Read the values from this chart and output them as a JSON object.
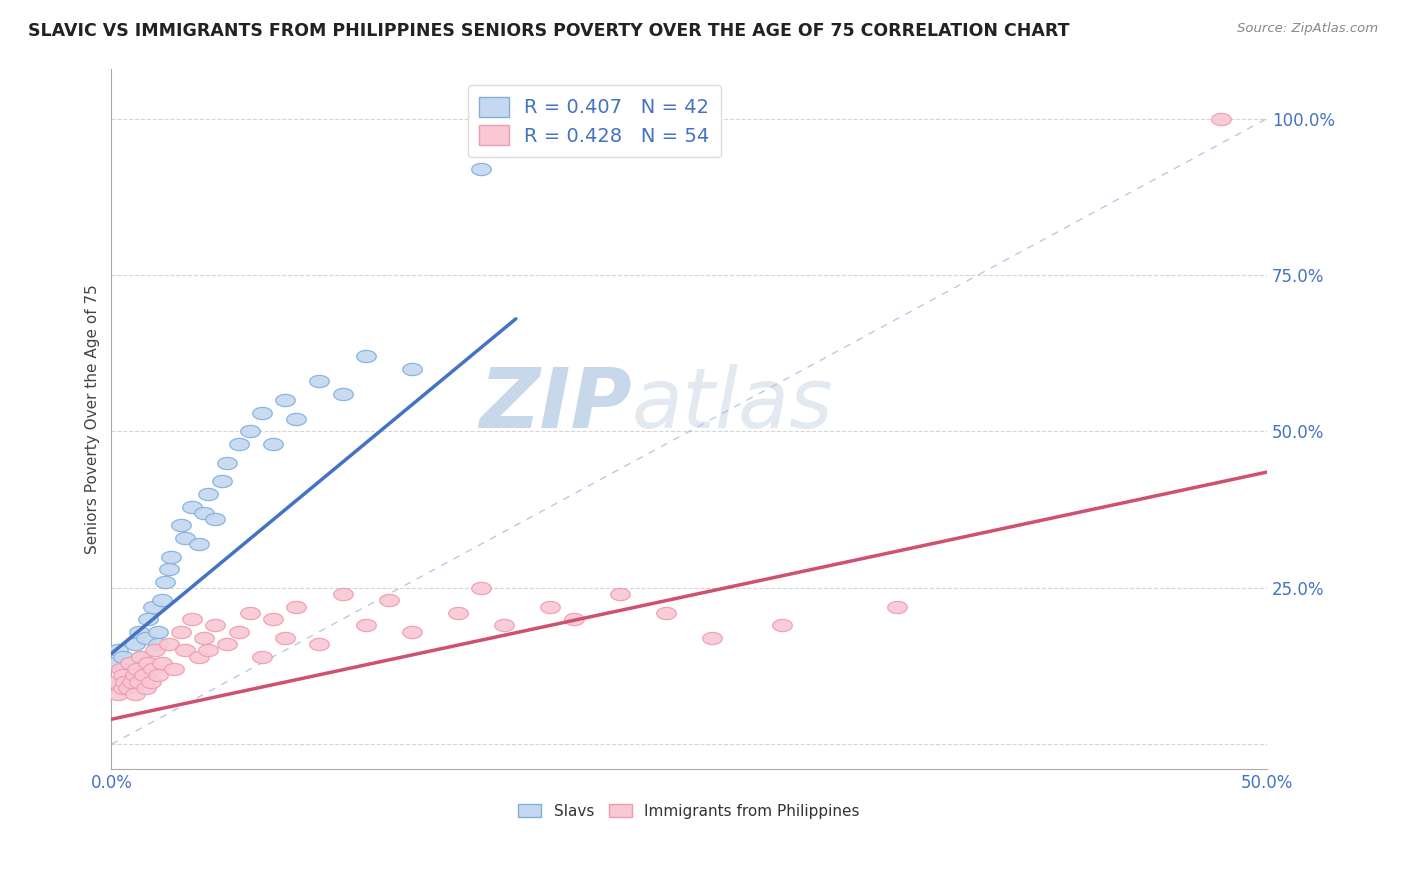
{
  "title": "SLAVIC VS IMMIGRANTS FROM PHILIPPINES SENIORS POVERTY OVER THE AGE OF 75 CORRELATION CHART",
  "source": "Source: ZipAtlas.com",
  "ylabel": "Seniors Poverty Over the Age of 75",
  "xlim": [
    0,
    0.5
  ],
  "ylim": [
    -0.04,
    1.08
  ],
  "xticks": [
    0.0,
    0.1,
    0.2,
    0.3,
    0.4,
    0.5
  ],
  "yticks": [
    0.0,
    0.25,
    0.5,
    0.75,
    1.0
  ],
  "yticklabels_right": [
    "",
    "25.0%",
    "50.0%",
    "75.0%",
    "100.0%"
  ],
  "legend_slavs_R": "R = 0.407",
  "legend_slavs_N": "N = 42",
  "legend_phil_R": "R = 0.428",
  "legend_phil_N": "N = 54",
  "slavs_fill": "#C5D8F0",
  "slavs_edge": "#7EB0DC",
  "phil_fill": "#F9C8D4",
  "phil_edge": "#F09AAF",
  "slavs_trend_color": "#4472C4",
  "phil_trend_color": "#D05070",
  "diagonal_color": "#AABBDD",
  "background_color": "#FFFFFF",
  "slavs_x": [
    0.002,
    0.003,
    0.004,
    0.005,
    0.006,
    0.007,
    0.008,
    0.009,
    0.01,
    0.01,
    0.012,
    0.013,
    0.015,
    0.015,
    0.016,
    0.018,
    0.02,
    0.02,
    0.022,
    0.023,
    0.025,
    0.026,
    0.03,
    0.032,
    0.035,
    0.038,
    0.04,
    0.042,
    0.045,
    0.048,
    0.05,
    0.055,
    0.06,
    0.065,
    0.07,
    0.075,
    0.08,
    0.09,
    0.1,
    0.11,
    0.13,
    0.16
  ],
  "slavs_y": [
    0.13,
    0.15,
    0.1,
    0.14,
    0.12,
    0.11,
    0.13,
    0.12,
    0.16,
    0.11,
    0.18,
    0.14,
    0.17,
    0.13,
    0.2,
    0.22,
    0.18,
    0.16,
    0.23,
    0.26,
    0.28,
    0.3,
    0.35,
    0.33,
    0.38,
    0.32,
    0.37,
    0.4,
    0.36,
    0.42,
    0.45,
    0.48,
    0.5,
    0.53,
    0.48,
    0.55,
    0.52,
    0.58,
    0.56,
    0.62,
    0.6,
    0.92
  ],
  "phil_x": [
    0.002,
    0.003,
    0.004,
    0.005,
    0.005,
    0.006,
    0.007,
    0.008,
    0.009,
    0.01,
    0.01,
    0.011,
    0.012,
    0.013,
    0.014,
    0.015,
    0.016,
    0.017,
    0.018,
    0.019,
    0.02,
    0.022,
    0.025,
    0.027,
    0.03,
    0.032,
    0.035,
    0.038,
    0.04,
    0.042,
    0.045,
    0.05,
    0.055,
    0.06,
    0.065,
    0.07,
    0.075,
    0.08,
    0.09,
    0.1,
    0.11,
    0.12,
    0.13,
    0.15,
    0.16,
    0.17,
    0.19,
    0.2,
    0.22,
    0.24,
    0.26,
    0.29,
    0.34,
    0.48
  ],
  "phil_y": [
    0.1,
    0.08,
    0.12,
    0.09,
    0.11,
    0.1,
    0.09,
    0.13,
    0.1,
    0.11,
    0.08,
    0.12,
    0.1,
    0.14,
    0.11,
    0.09,
    0.13,
    0.1,
    0.12,
    0.15,
    0.11,
    0.13,
    0.16,
    0.12,
    0.18,
    0.15,
    0.2,
    0.14,
    0.17,
    0.15,
    0.19,
    0.16,
    0.18,
    0.21,
    0.14,
    0.2,
    0.17,
    0.22,
    0.16,
    0.24,
    0.19,
    0.23,
    0.18,
    0.21,
    0.25,
    0.19,
    0.22,
    0.2,
    0.24,
    0.21,
    0.17,
    0.19,
    0.22,
    1.0
  ],
  "slavs_trend_x": [
    0.0,
    0.175
  ],
  "slavs_trend_y": [
    0.145,
    0.68
  ],
  "phil_trend_x": [
    0.0,
    0.5
  ],
  "phil_trend_y": [
    0.04,
    0.435
  ]
}
